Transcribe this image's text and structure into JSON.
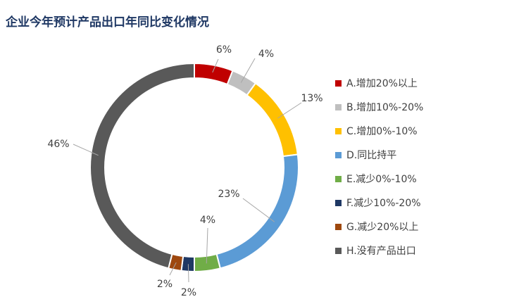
{
  "chart_data": {
    "type": "pie",
    "title": "企业今年预计产品出口年同比变化情况",
    "categories": [
      "A.增加20%以上",
      "B.增加10%-20%",
      "C.增加0%-10%",
      "D.同比持平",
      "E.减少0%-10%",
      "F.减少10%-20%",
      "G.减少20%以上",
      "H.没有产品出口"
    ],
    "values": [
      6,
      4,
      13,
      23,
      4,
      2,
      2,
      46
    ],
    "data_labels": [
      "6%",
      "4%",
      "13%",
      "23%",
      "4%",
      "2%",
      "2%",
      "46%"
    ],
    "colors": [
      "#c00000",
      "#bfbfbf",
      "#ffc000",
      "#5b9bd5",
      "#70ad47",
      "#1f3864",
      "#9e480e",
      "#595959"
    ],
    "legend_position": "right"
  }
}
